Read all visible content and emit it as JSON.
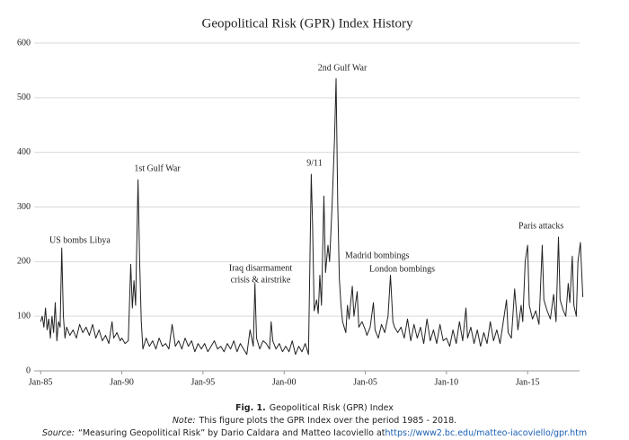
{
  "chart_data": {
    "type": "line",
    "title": "Geopolitical Risk (GPR) Index History",
    "color": "#222222",
    "grid": true,
    "xlim": [
      1984.6,
      2018.2
    ],
    "xticks": [
      {
        "value": 1985,
        "label": "Jan-85"
      },
      {
        "value": 1990,
        "label": "Jan-90"
      },
      {
        "value": 1995,
        "label": "Jan-95"
      },
      {
        "value": 2000,
        "label": "Jan-00"
      },
      {
        "value": 2005,
        "label": "Jan-05"
      },
      {
        "value": 2010,
        "label": "Jan-10"
      },
      {
        "value": 2015,
        "label": "Jan-15"
      }
    ],
    "ylim": [
      0,
      600
    ],
    "yticks": [
      0,
      100,
      200,
      300,
      400,
      500,
      600
    ],
    "annotations": [
      "US bombs Libya",
      "1st Gulf War",
      "Iraq disarmament",
      "crisis & airstrike",
      "9/11",
      "2nd Gulf War",
      "Madrid bombings",
      "London bombings",
      "Paris attacks"
    ],
    "x": [
      1985.0,
      1985.1,
      1985.2,
      1985.3,
      1985.4,
      1985.5,
      1985.6,
      1985.7,
      1985.8,
      1985.9,
      1986.0,
      1986.1,
      1986.2,
      1986.3,
      1986.4,
      1986.5,
      1986.6,
      1986.8,
      1987.0,
      1987.2,
      1987.4,
      1987.6,
      1987.8,
      1988.0,
      1988.2,
      1988.4,
      1988.6,
      1988.8,
      1989.0,
      1989.2,
      1989.4,
      1989.5,
      1989.7,
      1989.9,
      1990.0,
      1990.2,
      1990.4,
      1990.55,
      1990.65,
      1990.75,
      1990.85,
      1991.0,
      1991.1,
      1991.2,
      1991.3,
      1991.5,
      1991.7,
      1991.9,
      1992.1,
      1992.3,
      1992.5,
      1992.7,
      1992.9,
      1993.1,
      1993.3,
      1993.5,
      1993.7,
      1993.9,
      1994.1,
      1994.3,
      1994.5,
      1994.7,
      1994.9,
      1995.1,
      1995.3,
      1995.5,
      1995.7,
      1995.9,
      1996.1,
      1996.3,
      1996.5,
      1996.7,
      1996.9,
      1997.1,
      1997.3,
      1997.5,
      1997.7,
      1997.9,
      1998.1,
      1998.2,
      1998.3,
      1998.5,
      1998.7,
      1998.9,
      1999.1,
      1999.2,
      1999.3,
      1999.5,
      1999.7,
      1999.9,
      2000.1,
      2000.3,
      2000.5,
      2000.7,
      2000.9,
      2001.1,
      2001.3,
      2001.5,
      2001.67,
      2001.75,
      2001.85,
      2002.0,
      2002.1,
      2002.2,
      2002.3,
      2002.45,
      2002.55,
      2002.7,
      2002.8,
      2002.95,
      2003.1,
      2003.2,
      2003.3,
      2003.4,
      2003.5,
      2003.6,
      2003.8,
      2003.9,
      2004.0,
      2004.2,
      2004.3,
      2004.5,
      2004.6,
      2004.8,
      2005.0,
      2005.1,
      2005.3,
      2005.5,
      2005.6,
      2005.8,
      2006.0,
      2006.2,
      2006.4,
      2006.55,
      2006.7,
      2006.8,
      2007.0,
      2007.2,
      2007.4,
      2007.6,
      2007.8,
      2008.0,
      2008.2,
      2008.4,
      2008.6,
      2008.8,
      2009.0,
      2009.2,
      2009.4,
      2009.6,
      2009.8,
      2010.0,
      2010.2,
      2010.4,
      2010.6,
      2010.8,
      2011.0,
      2011.2,
      2011.3,
      2011.5,
      2011.7,
      2011.9,
      2012.1,
      2012.3,
      2012.5,
      2012.7,
      2012.9,
      2013.1,
      2013.3,
      2013.5,
      2013.7,
      2013.8,
      2014.0,
      2014.2,
      2014.4,
      2014.6,
      2014.7,
      2014.85,
      2015.0,
      2015.1,
      2015.3,
      2015.5,
      2015.7,
      2015.9,
      2016.0,
      2016.2,
      2016.4,
      2016.6,
      2016.75,
      2016.9,
      2017.0,
      2017.2,
      2017.35,
      2017.5,
      2017.6,
      2017.75,
      2017.85,
      2018.0,
      2018.1,
      2018.25,
      2018.4
    ],
    "values": [
      90,
      100,
      80,
      115,
      75,
      95,
      60,
      100,
      70,
      125,
      55,
      90,
      80,
      225,
      100,
      60,
      80,
      65,
      75,
      60,
      85,
      70,
      80,
      65,
      85,
      60,
      75,
      55,
      65,
      50,
      90,
      60,
      70,
      55,
      60,
      50,
      55,
      195,
      115,
      165,
      120,
      350,
      200,
      90,
      40,
      60,
      45,
      55,
      40,
      60,
      45,
      50,
      40,
      85,
      45,
      55,
      40,
      60,
      45,
      55,
      35,
      50,
      40,
      50,
      35,
      45,
      55,
      40,
      45,
      35,
      50,
      40,
      55,
      35,
      50,
      40,
      30,
      75,
      45,
      160,
      60,
      40,
      55,
      50,
      40,
      90,
      55,
      40,
      50,
      35,
      45,
      35,
      55,
      30,
      45,
      35,
      50,
      30,
      360,
      270,
      110,
      130,
      105,
      175,
      120,
      320,
      180,
      230,
      200,
      300,
      420,
      535,
      310,
      170,
      120,
      90,
      70,
      120,
      95,
      155,
      100,
      145,
      80,
      90,
      75,
      65,
      80,
      125,
      75,
      60,
      85,
      70,
      100,
      175,
      90,
      80,
      70,
      80,
      60,
      95,
      55,
      85,
      60,
      80,
      50,
      95,
      55,
      75,
      50,
      85,
      55,
      60,
      45,
      75,
      50,
      90,
      55,
      115,
      60,
      80,
      50,
      75,
      45,
      70,
      50,
      90,
      55,
      75,
      50,
      90,
      130,
      70,
      60,
      150,
      75,
      120,
      90,
      200,
      230,
      120,
      95,
      110,
      85,
      230,
      130,
      110,
      95,
      140,
      90,
      245,
      130,
      110,
      100,
      160,
      125,
      210,
      120,
      100,
      200,
      235,
      135
    ]
  },
  "caption": {
    "fig_label": "Fig. 1.",
    "fig_title": "Geopolitical Risk (GPR) Index",
    "note_label": "Note:",
    "note_text": "This figure plots the GPR Index over the period 1985 - 2018.",
    "source_label": "Source:",
    "source_text": "“Measuring Geopolitical Risk” by Dario Caldara and Matteo Iacoviello at",
    "source_url": "https://www2.bc.edu/matteo-iacoviello/gpr.htm"
  }
}
